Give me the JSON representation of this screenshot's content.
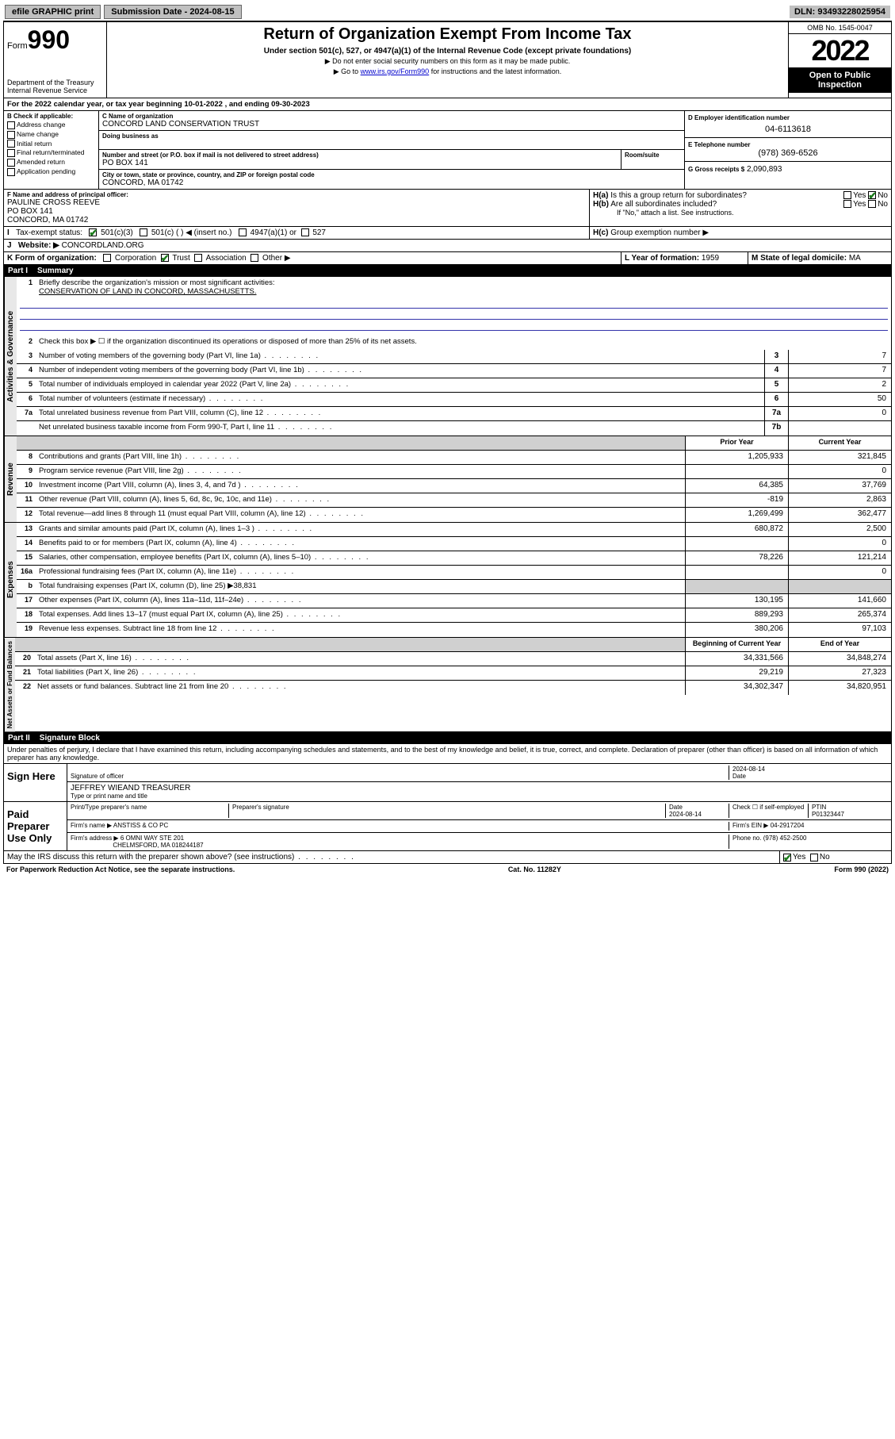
{
  "topbar": {
    "efile": "efile GRAPHIC print",
    "sub_label": "Submission Date - 2024-08-15",
    "dln": "DLN: 93493228025954"
  },
  "header": {
    "form_prefix": "Form",
    "form_num": "990",
    "dept": "Department of the Treasury Internal Revenue Service",
    "title": "Return of Organization Exempt From Income Tax",
    "subtitle": "Under section 501(c), 527, or 4947(a)(1) of the Internal Revenue Code (except private foundations)",
    "note1": "▶ Do not enter social security numbers on this form as it may be made public.",
    "note2_pre": "▶ Go to ",
    "note2_link": "www.irs.gov/Form990",
    "note2_post": " for instructions and the latest information.",
    "omb": "OMB No. 1545-0047",
    "year": "2022",
    "inspect": "Open to Public Inspection"
  },
  "A": {
    "text": "For the 2022 calendar year, or tax year beginning 10-01-2022   , and ending 09-30-2023"
  },
  "B": {
    "label": "B Check if applicable:",
    "opts": [
      "Address change",
      "Name change",
      "Initial return",
      "Final return/terminated",
      "Amended return",
      "Application pending"
    ]
  },
  "C": {
    "name_label": "C Name of organization",
    "name": "CONCORD LAND CONSERVATION TRUST",
    "dba_label": "Doing business as",
    "street_label": "Number and street (or P.O. box if mail is not delivered to street address)",
    "room_label": "Room/suite",
    "street": "PO BOX 141",
    "city_label": "City or town, state or province, country, and ZIP or foreign postal code",
    "city": "CONCORD, MA  01742"
  },
  "D": {
    "label": "D Employer identification number",
    "val": "04-6113618"
  },
  "E": {
    "label": "E Telephone number",
    "val": "(978) 369-6526"
  },
  "G": {
    "label": "G Gross receipts $",
    "val": "2,090,893"
  },
  "F": {
    "label": "F Name and address of principal officer:",
    "name": "PAULINE CROSS REEVE",
    "addr1": "PO BOX 141",
    "addr2": "CONCORD, MA  01742"
  },
  "H": {
    "a": "Is this a group return for subordinates?",
    "b": "Are all subordinates included?",
    "note": "If \"No,\" attach a list. See instructions.",
    "c": "Group exemption number ▶"
  },
  "I": {
    "label": "Tax-exempt status:",
    "opts": [
      "501(c)(3)",
      "501(c) (  ) ◀ (insert no.)",
      "4947(a)(1) or",
      "527"
    ]
  },
  "J": {
    "label": "Website: ▶",
    "val": "CONCORDLAND.ORG"
  },
  "K": {
    "label": "K Form of organization:",
    "opts": [
      "Corporation",
      "Trust",
      "Association",
      "Other ▶"
    ]
  },
  "L": {
    "label": "L Year of formation:",
    "val": "1959"
  },
  "M": {
    "label": "M State of legal domicile:",
    "val": "MA"
  },
  "part1": {
    "title": "Part I",
    "name": "Summary",
    "l1": "Briefly describe the organization's mission or most significant activities:",
    "mission": "CONSERVATION OF LAND IN CONCORD, MASSACHUSETTS.",
    "l2": "Check this box ▶ ☐  if the organization discontinued its operations or disposed of more than 25% of its net assets.",
    "tabs": {
      "ag": "Activities & Governance",
      "rev": "Revenue",
      "exp": "Expenses",
      "net": "Net Assets or Fund Balances"
    },
    "col_prior": "Prior Year",
    "col_current": "Current Year",
    "col_beg": "Beginning of Current Year",
    "col_end": "End of Year",
    "lines_gov": [
      {
        "n": "3",
        "d": "Number of voting members of the governing body (Part VI, line 1a)",
        "box": "3",
        "v": "7"
      },
      {
        "n": "4",
        "d": "Number of independent voting members of the governing body (Part VI, line 1b)",
        "box": "4",
        "v": "7"
      },
      {
        "n": "5",
        "d": "Total number of individuals employed in calendar year 2022 (Part V, line 2a)",
        "box": "5",
        "v": "2"
      },
      {
        "n": "6",
        "d": "Total number of volunteers (estimate if necessary)",
        "box": "6",
        "v": "50"
      },
      {
        "n": "7a",
        "d": "Total unrelated business revenue from Part VIII, column (C), line 12",
        "box": "7a",
        "v": "0"
      },
      {
        "n": "",
        "d": "Net unrelated business taxable income from Form 990-T, Part I, line 11",
        "box": "7b",
        "v": ""
      }
    ],
    "lines_rev": [
      {
        "n": "8",
        "d": "Contributions and grants (Part VIII, line 1h)",
        "p": "1,205,933",
        "c": "321,845"
      },
      {
        "n": "9",
        "d": "Program service revenue (Part VIII, line 2g)",
        "p": "",
        "c": "0"
      },
      {
        "n": "10",
        "d": "Investment income (Part VIII, column (A), lines 3, 4, and 7d )",
        "p": "64,385",
        "c": "37,769"
      },
      {
        "n": "11",
        "d": "Other revenue (Part VIII, column (A), lines 5, 6d, 8c, 9c, 10c, and 11e)",
        "p": "-819",
        "c": "2,863"
      },
      {
        "n": "12",
        "d": "Total revenue—add lines 8 through 11 (must equal Part VIII, column (A), line 12)",
        "p": "1,269,499",
        "c": "362,477"
      }
    ],
    "lines_exp": [
      {
        "n": "13",
        "d": "Grants and similar amounts paid (Part IX, column (A), lines 1–3 )",
        "p": "680,872",
        "c": "2,500"
      },
      {
        "n": "14",
        "d": "Benefits paid to or for members (Part IX, column (A), line 4)",
        "p": "",
        "c": "0"
      },
      {
        "n": "15",
        "d": "Salaries, other compensation, employee benefits (Part IX, column (A), lines 5–10)",
        "p": "78,226",
        "c": "121,214"
      },
      {
        "n": "16a",
        "d": "Professional fundraising fees (Part IX, column (A), line 11e)",
        "p": "",
        "c": "0"
      },
      {
        "n": "b",
        "d": "Total fundraising expenses (Part IX, column (D), line 25) ▶38,831",
        "p": null,
        "c": null
      },
      {
        "n": "17",
        "d": "Other expenses (Part IX, column (A), lines 11a–11d, 11f–24e)",
        "p": "130,195",
        "c": "141,660"
      },
      {
        "n": "18",
        "d": "Total expenses. Add lines 13–17 (must equal Part IX, column (A), line 25)",
        "p": "889,293",
        "c": "265,374"
      },
      {
        "n": "19",
        "d": "Revenue less expenses. Subtract line 18 from line 12",
        "p": "380,206",
        "c": "97,103"
      }
    ],
    "lines_net": [
      {
        "n": "20",
        "d": "Total assets (Part X, line 16)",
        "p": "34,331,566",
        "c": "34,848,274"
      },
      {
        "n": "21",
        "d": "Total liabilities (Part X, line 26)",
        "p": "29,219",
        "c": "27,323"
      },
      {
        "n": "22",
        "d": "Net assets or fund balances. Subtract line 21 from line 20",
        "p": "34,302,347",
        "c": "34,820,951"
      }
    ]
  },
  "part2": {
    "title": "Part II",
    "name": "Signature Block",
    "decl": "Under penalties of perjury, I declare that I have examined this return, including accompanying schedules and statements, and to the best of my knowledge and belief, it is true, correct, and complete. Declaration of preparer (other than officer) is based on all information of which preparer has any knowledge.",
    "sign_here": "Sign Here",
    "sig_officer": "Signature of officer",
    "date": "Date",
    "sig_date": "2024-08-14",
    "officer": "JEFFREY WIEAND  TREASURER",
    "type_name": "Type or print name and title",
    "paid": "Paid Preparer Use Only",
    "prep_name_label": "Print/Type preparer's name",
    "prep_sig_label": "Preparer's signature",
    "prep_date": "2024-08-14",
    "check_if": "Check ☐ if self-employed",
    "ptin_label": "PTIN",
    "ptin": "P01323447",
    "firm_name_label": "Firm's name    ▶",
    "firm_name": "ANSTISS & CO PC",
    "firm_ein_label": "Firm's EIN ▶",
    "firm_ein": "04-2917204",
    "firm_addr_label": "Firm's address ▶",
    "firm_addr1": "6 OMNI WAY STE 201",
    "firm_addr2": "CHELMSFORD, MA  018244187",
    "phone_label": "Phone no.",
    "phone": "(978) 452-2500",
    "discuss": "May the IRS discuss this return with the preparer shown above? (see instructions)"
  },
  "footer": {
    "left": "For Paperwork Reduction Act Notice, see the separate instructions.",
    "mid": "Cat. No. 11282Y",
    "right": "Form 990 (2022)"
  }
}
